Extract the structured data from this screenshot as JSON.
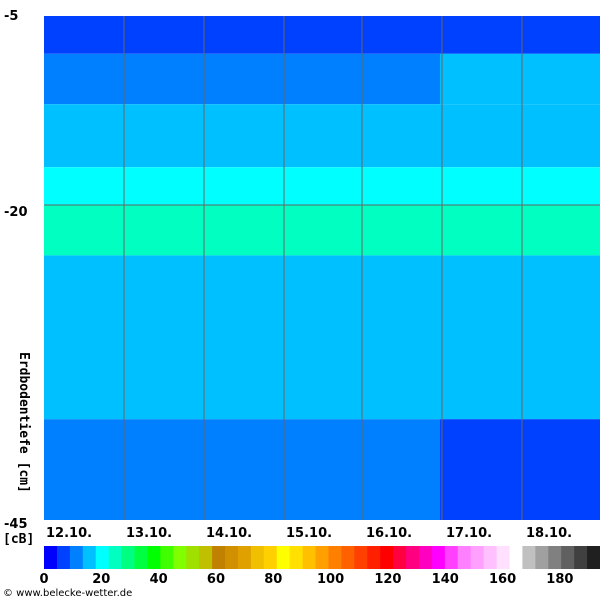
{
  "chart_data": {
    "type": "heatmap",
    "ylabel": "Erdbodentiefe [cm]",
    "unit": "[cB]",
    "y_ticks": [
      "-5",
      "-20",
      "-45"
    ],
    "x_ticks": [
      "12.10.",
      "13.10.",
      "14.10.",
      "15.10.",
      "16.10.",
      "17.10.",
      "18.10."
    ],
    "colorbar_ticks": [
      "0",
      "20",
      "40",
      "60",
      "80",
      "100",
      "120",
      "140",
      "160",
      "180"
    ],
    "colorbar_range": [
      0,
      194
    ],
    "colorbar_colors": [
      "#0000ff",
      "#0040ff",
      "#0080ff",
      "#00c0ff",
      "#00ffff",
      "#00ffc0",
      "#00ff80",
      "#00ff40",
      "#00ff00",
      "#40ff00",
      "#80ff00",
      "#a0e000",
      "#c0c000",
      "#c08000",
      "#d09000",
      "#e0a000",
      "#f0c000",
      "#ffd000",
      "#ffff00",
      "#ffe000",
      "#ffc000",
      "#ffa000",
      "#ff8000",
      "#ff6000",
      "#ff4000",
      "#ff2000",
      "#ff0000",
      "#ff0040",
      "#ff0080",
      "#ff00c0",
      "#ff00ff",
      "#ff40ff",
      "#ff80ff",
      "#ffa0ff",
      "#ffc0ff",
      "#ffe0ff",
      "#ffffff",
      "#c0c0c0",
      "#a0a0a0",
      "#808080",
      "#606060",
      "#404040",
      "#202020"
    ],
    "depth_bands": [
      {
        "from_depth": -5,
        "to_depth": -8,
        "value_before": 8,
        "value_after": 8
      },
      {
        "from_depth": -8,
        "to_depth": -12,
        "value_before": 12,
        "value_after": 14
      },
      {
        "from_depth": -12,
        "to_depth": -17,
        "value_before": 18,
        "value_after": 18
      },
      {
        "from_depth": -17,
        "to_depth": -20,
        "value_before": 22,
        "value_after": 22
      },
      {
        "from_depth": -20,
        "to_depth": -24,
        "value_before": 24,
        "value_after": 24
      },
      {
        "from_depth": -24,
        "to_depth": -37,
        "value_before": 18,
        "value_after": 14
      },
      {
        "from_depth": -37,
        "to_depth": -45,
        "value_before": 12,
        "value_after": 6
      }
    ],
    "credit": "© www.belecke-wetter.de"
  }
}
